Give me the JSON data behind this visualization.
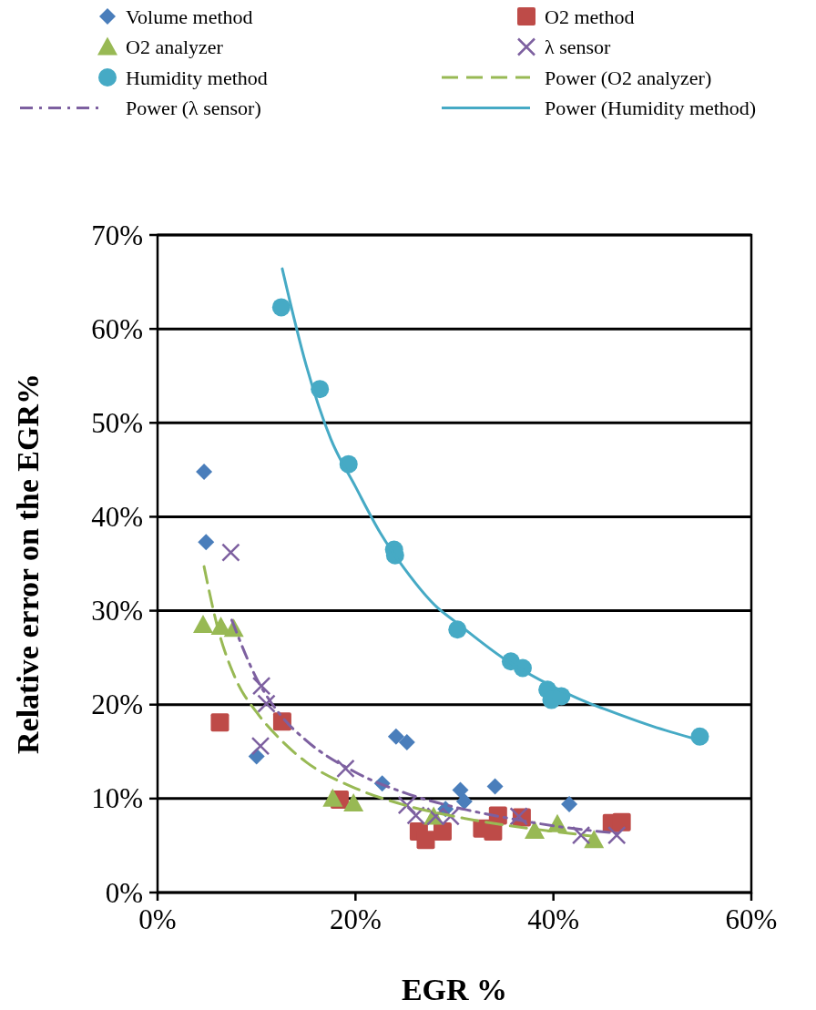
{
  "chart_data": {
    "type": "scatter",
    "xlabel": "EGR %",
    "ylabel": "Relative error on the EGR%",
    "xlim": [
      0,
      60
    ],
    "ylim": [
      0,
      70
    ],
    "xticks": [
      {
        "value": 0,
        "label": "0%"
      },
      {
        "value": 20,
        "label": "20%"
      },
      {
        "value": 40,
        "label": "40%"
      },
      {
        "value": 60,
        "label": "60%"
      }
    ],
    "yticks": [
      {
        "value": 0,
        "label": "0%"
      },
      {
        "value": 10,
        "label": "10%"
      },
      {
        "value": 20,
        "label": "20%"
      },
      {
        "value": 30,
        "label": "30%"
      },
      {
        "value": 40,
        "label": "40%"
      },
      {
        "value": 50,
        "label": "50%"
      },
      {
        "value": 60,
        "label": "60%"
      },
      {
        "value": 70,
        "label": "70%"
      }
    ],
    "grid": "y",
    "legend": "top",
    "series": [
      {
        "name": "Volume method",
        "marker": "diamond",
        "color": "#4a7ebb",
        "x": [
          4.7,
          4.9,
          10.0,
          22.7,
          24.1,
          25.2,
          29.1,
          30.6,
          31.0,
          34.1,
          41.6
        ],
        "values": [
          44.8,
          37.3,
          14.5,
          11.6,
          16.6,
          16.0,
          8.9,
          10.9,
          9.7,
          11.3,
          9.4
        ]
      },
      {
        "name": "O2 method",
        "marker": "square",
        "color": "#be4b48",
        "x": [
          6.3,
          12.6,
          18.4,
          26.4,
          27.1,
          28.8,
          32.8,
          33.9,
          34.4,
          36.8,
          45.9,
          46.9
        ],
        "values": [
          18.1,
          18.2,
          9.9,
          6.5,
          5.6,
          6.5,
          6.8,
          6.5,
          8.2,
          8.0,
          7.4,
          7.5
        ]
      },
      {
        "name": "O2 analyzer",
        "marker": "triangle",
        "color": "#98b954",
        "x": [
          4.6,
          6.4,
          7.7,
          17.7,
          19.8,
          27.9,
          38.1,
          40.4,
          44.1
        ],
        "values": [
          28.5,
          28.3,
          28.1,
          10.0,
          9.5,
          8.1,
          6.6,
          7.3,
          5.6
        ]
      },
      {
        "name": "λ sensor",
        "marker": "cross",
        "color": "#7d60a0",
        "x": [
          7.4,
          10.5,
          11.0,
          10.4,
          19.0,
          25.2,
          26.1,
          28.1,
          29.6,
          36.5,
          42.8,
          46.4
        ],
        "values": [
          36.2,
          22.0,
          20.1,
          15.6,
          13.2,
          9.3,
          8.2,
          8.1,
          8.1,
          8.1,
          6.1,
          6.1
        ]
      },
      {
        "name": "Humidity method",
        "marker": "circle",
        "color": "#46aac5",
        "x": [
          12.5,
          16.4,
          19.3,
          23.9,
          24.0,
          30.3,
          35.7,
          36.9,
          39.4,
          39.8,
          40.8,
          54.8
        ],
        "values": [
          62.3,
          53.6,
          45.6,
          36.5,
          35.9,
          28.0,
          24.6,
          23.9,
          21.6,
          20.5,
          20.9,
          16.6
        ]
      },
      {
        "name": "Power (O2 analyzer)",
        "type": "line",
        "marker": "none",
        "line_style": "dashed",
        "color": "#98b954",
        "x": [
          4.7,
          6,
          8,
          10,
          12.5,
          15,
          20,
          25,
          30,
          35,
          40,
          44
        ],
        "values": [
          34.7,
          28.5,
          22.5,
          19.2,
          16.2,
          13.9,
          11.1,
          9.3,
          8.1,
          7.2,
          6.5,
          6.0
        ]
      },
      {
        "name": "Power (λ sensor)",
        "type": "line",
        "marker": "none",
        "line_style": "dashdot",
        "color": "#7d60a0",
        "x": [
          7.5,
          10,
          12.5,
          15,
          20,
          25,
          30,
          35,
          40,
          46.5
        ],
        "values": [
          29.0,
          22.8,
          18.8,
          16.2,
          12.8,
          10.6,
          9.1,
          8.0,
          7.1,
          6.3
        ]
      },
      {
        "name": "Power (Humidity method)",
        "type": "line",
        "marker": "none",
        "line_style": "solid",
        "color": "#46aac5",
        "x": [
          12.6,
          15,
          17.5,
          20,
          22.5,
          25,
          28.3,
          30,
          35,
          40,
          43.5,
          45,
          50,
          54.8
        ],
        "values": [
          66.4,
          56.2,
          48.3,
          43.2,
          38.3,
          34.4,
          30.3,
          28.9,
          24.9,
          21.9,
          20.2,
          19.6,
          17.7,
          16.2
        ]
      }
    ]
  }
}
